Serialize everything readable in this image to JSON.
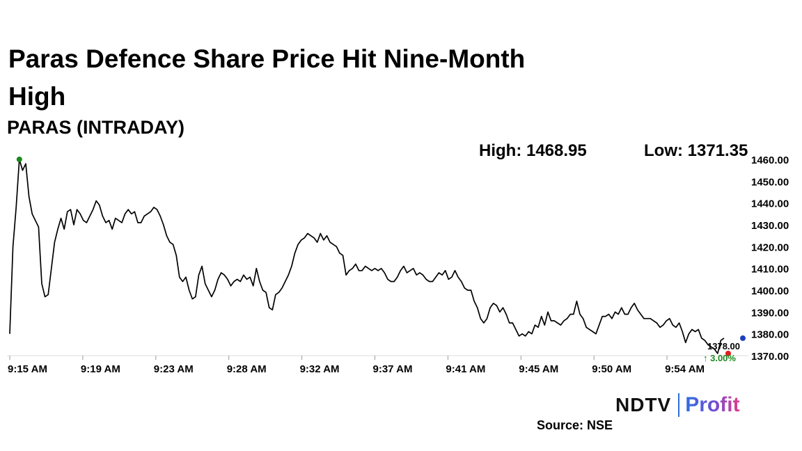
{
  "header": {
    "title": "Paras Defence Share Price Hit Nine-Month High",
    "subtitle": "PARAS (INTRADAY)",
    "high_label": "High: 1468.95",
    "low_label": "Low: 1371.35"
  },
  "footer": {
    "source": "Source: NSE",
    "logo_left": "NDTV",
    "logo_right": "Profit"
  },
  "colors": {
    "line": "#000000",
    "high_marker": "#1a8a1a",
    "last_marker": "#e02020",
    "end_marker": "#1f3fbf",
    "change_text": "#1a8a1a",
    "axis_text": "#000000",
    "gridline": "#dddddd"
  },
  "chart_data": {
    "type": "line",
    "title": "PARAS (INTRADAY)",
    "xlabel": "",
    "ylabel": "",
    "ylim": [
      1370,
      1460
    ],
    "y_ticks": [
      "1460.00",
      "1450.00",
      "1440.00",
      "1430.00",
      "1420.00",
      "1410.00",
      "1400.00",
      "1390.00",
      "1380.00",
      "1370.00"
    ],
    "x_ticks": [
      "9:15 AM",
      "9:19 AM",
      "9:23 AM",
      "9:28 AM",
      "9:32 AM",
      "9:37 AM",
      "9:41 AM",
      "9:45 AM",
      "9:50 AM",
      "9:54 AM"
    ],
    "grid": false,
    "high": 1468.95,
    "low": 1371.35,
    "last_price_label": "1378.00",
    "change_label": "↑ 3.00%",
    "series": [
      {
        "values": [
          1380,
          1420,
          1438,
          1460,
          1455,
          1458,
          1443,
          1435,
          1432,
          1429,
          1403,
          1397,
          1398,
          1410,
          1422,
          1428,
          1433,
          1428,
          1436,
          1437,
          1430,
          1437,
          1435,
          1432,
          1431,
          1434,
          1437,
          1441,
          1439,
          1434,
          1431,
          1432,
          1428,
          1433,
          1432,
          1431,
          1435,
          1437,
          1435,
          1436,
          1431,
          1431,
          1434,
          1435,
          1436,
          1438,
          1437,
          1434,
          1430,
          1425,
          1422,
          1421,
          1416,
          1406,
          1404,
          1406,
          1400,
          1396,
          1397,
          1407,
          1411,
          1403,
          1400,
          1397,
          1400,
          1405,
          1408,
          1407,
          1405,
          1402,
          1404,
          1405,
          1404,
          1407,
          1405,
          1406,
          1402,
          1410,
          1404,
          1400,
          1399,
          1392,
          1391,
          1398,
          1399,
          1401,
          1404,
          1407,
          1411,
          1417,
          1421,
          1423,
          1424,
          1426,
          1425,
          1424,
          1422,
          1426,
          1423,
          1425,
          1422,
          1421,
          1420,
          1417,
          1416,
          1407,
          1409,
          1410,
          1412,
          1409,
          1409,
          1411,
          1410,
          1409,
          1410,
          1409,
          1410,
          1408,
          1405,
          1404,
          1404,
          1406,
          1409,
          1411,
          1408,
          1409,
          1410,
          1407,
          1408,
          1407,
          1405,
          1404,
          1404,
          1406,
          1408,
          1407,
          1409,
          1405,
          1406,
          1409,
          1406,
          1404,
          1401,
          1400,
          1400,
          1395,
          1392,
          1387,
          1385,
          1387,
          1392,
          1394,
          1393,
          1390,
          1392,
          1389,
          1385,
          1385,
          1382,
          1379,
          1380,
          1379,
          1381,
          1380,
          1384,
          1383,
          1388,
          1384,
          1390,
          1386,
          1386,
          1385,
          1384,
          1386,
          1387,
          1389,
          1389,
          1395,
          1389,
          1387,
          1383,
          1382,
          1381,
          1380,
          1384,
          1388,
          1388,
          1389,
          1387,
          1390,
          1389,
          1392,
          1389,
          1389,
          1392,
          1394,
          1391,
          1389,
          1387,
          1387,
          1387,
          1386,
          1385,
          1383,
          1384,
          1386,
          1387,
          1384,
          1383,
          1385,
          1381,
          1376,
          1380,
          1382,
          1381,
          1382,
          1378,
          1377,
          1375,
          1374,
          1373,
          1371,
          1377,
          1378
        ]
      }
    ]
  }
}
